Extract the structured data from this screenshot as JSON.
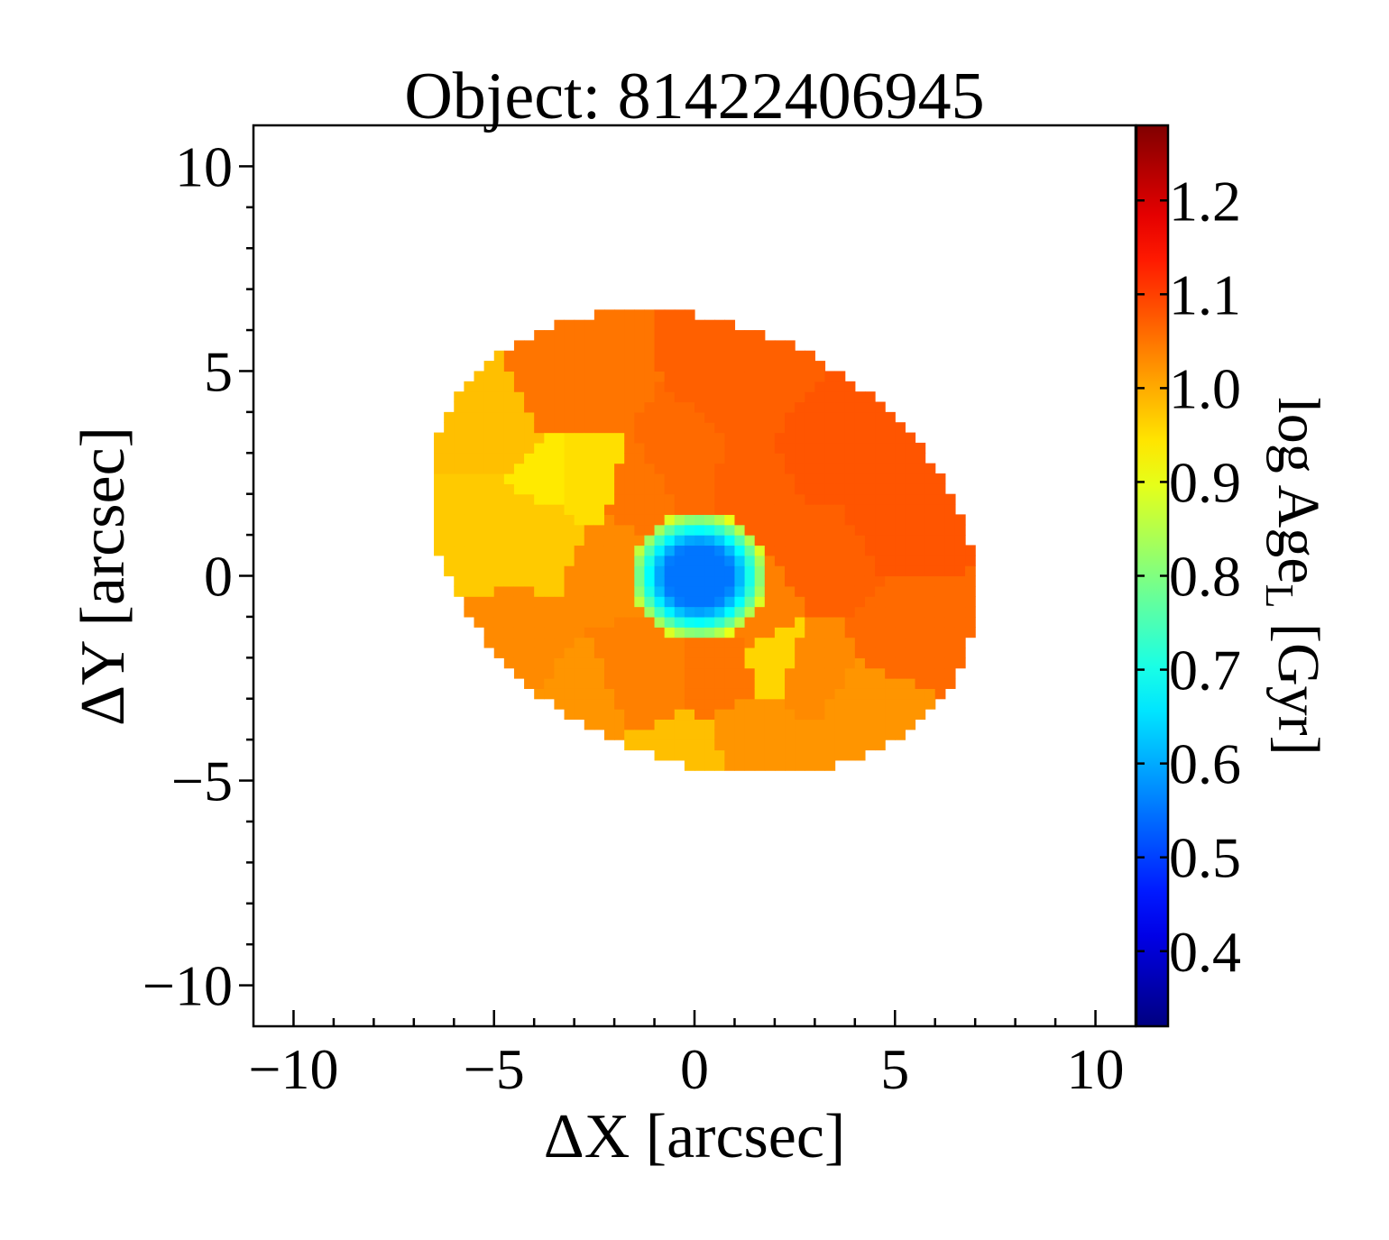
{
  "chart_data": {
    "type": "heatmap",
    "title": "Object: 81422406945",
    "xlabel": "ΔX [arcsec]",
    "ylabel": "ΔY [arcsec]",
    "colorbar_label": "log Age",
    "colorbar_label_sub": "L",
    "colorbar_label_unit": " [Gyr]",
    "xlim": [
      -11,
      11
    ],
    "ylim": [
      -11,
      11
    ],
    "x_ticks": [
      -10,
      -5,
      0,
      5,
      10
    ],
    "y_ticks": [
      -10,
      -5,
      0,
      5,
      10
    ],
    "x_tick_labels": [
      "−10",
      "−5",
      "0",
      "5",
      "10"
    ],
    "y_tick_labels": [
      "−10",
      "−5",
      "0",
      "5",
      "10"
    ],
    "colorbar_range": [
      0.32,
      1.28
    ],
    "colorbar_ticks": [
      0.4,
      0.5,
      0.6,
      0.7,
      0.8,
      0.9,
      1.0,
      1.1,
      1.2
    ],
    "colorbar_tick_labels": [
      "0.4",
      "0.5",
      "0.6",
      "0.7",
      "0.8",
      "0.9",
      "1.0",
      "1.1",
      "1.2"
    ],
    "colormap": "jet",
    "galaxy": {
      "center": [
        0.2,
        0.8
      ],
      "semi_major": 7.1,
      "semi_minor": 5.3,
      "angle_deg": -25
    },
    "core": {
      "center": [
        0.1,
        0.0
      ],
      "inner_radius": 0.8,
      "outer_radius": 1.7,
      "inner_value": 0.55,
      "outer_value": 0.75
    },
    "bins": [
      {
        "x": -5.3,
        "y": 1.3,
        "value": 0.97
      },
      {
        "x": -5.0,
        "y": 3.6,
        "value": 0.98
      },
      {
        "x": -3.2,
        "y": 4.5,
        "value": 1.05
      },
      {
        "x": -2.9,
        "y": 2.3,
        "value": 0.95
      },
      {
        "x": -3.8,
        "y": 1.2,
        "value": 0.97
      },
      {
        "x": 1.5,
        "y": 4.8,
        "value": 1.07
      },
      {
        "x": 3.4,
        "y": 3.2,
        "value": 1.08
      },
      {
        "x": 5.0,
        "y": 1.4,
        "value": 1.08
      },
      {
        "x": 1.3,
        "y": 2.1,
        "value": 1.07
      },
      {
        "x": 3.3,
        "y": 0.3,
        "value": 1.07
      },
      {
        "x": 5.3,
        "y": -1.5,
        "value": 1.06
      },
      {
        "x": -1.2,
        "y": 1.8,
        "value": 1.05
      },
      {
        "x": -0.2,
        "y": 2.4,
        "value": 1.06
      },
      {
        "x": -1.9,
        "y": 0.4,
        "value": 1.03
      },
      {
        "x": 1.6,
        "y": -0.9,
        "value": 1.04
      },
      {
        "x": -4.4,
        "y": -1.9,
        "value": 1.03
      },
      {
        "x": -3.0,
        "y": -3.1,
        "value": 1.02
      },
      {
        "x": -1.2,
        "y": -2.4,
        "value": 1.04
      },
      {
        "x": 0.6,
        "y": -2.2,
        "value": 1.05
      },
      {
        "x": 2.7,
        "y": -2.2,
        "value": 1.03
      },
      {
        "x": 4.5,
        "y": -3.3,
        "value": 1.02
      },
      {
        "x": 1.5,
        "y": -4.0,
        "value": 1.02
      },
      {
        "x": -0.3,
        "y": -4.6,
        "value": 0.98
      },
      {
        "x": 3.4,
        "y": -4.7,
        "value": 1.02
      },
      {
        "x": -3.4,
        "y": 2.3,
        "value": 0.94
      },
      {
        "x": 2.1,
        "y": -2.0,
        "value": 0.96
      }
    ]
  }
}
